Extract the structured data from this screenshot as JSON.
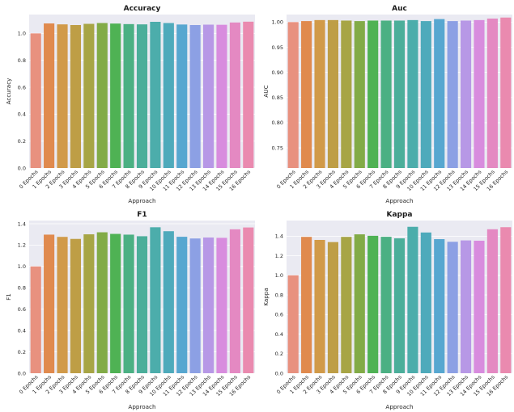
{
  "chart_data": [
    {
      "type": "bar",
      "title": "Accuracy",
      "xlabel": "Approach",
      "ylabel": "Accuracy",
      "categories": [
        "0 Epochs",
        "1 Epochs",
        "2 Epochs",
        "3 Epochs",
        "4 Epochs",
        "5 Epochs",
        "6 Epochs",
        "7 Epochs",
        "8 Epochs",
        "9 Epochs",
        "10 Epochs",
        "11 Epochs",
        "12 Epochs",
        "13 Epochs",
        "14 Epochs",
        "15 Epochs",
        "16 Epochs"
      ],
      "values": [
        1.0,
        1.074,
        1.067,
        1.062,
        1.071,
        1.077,
        1.073,
        1.069,
        1.067,
        1.086,
        1.077,
        1.066,
        1.062,
        1.065,
        1.064,
        1.081,
        1.087
      ],
      "ylim": [
        0,
        1.14
      ],
      "yticks": [
        "0.0",
        "0.2",
        "0.4",
        "0.6",
        "0.8",
        "1.0"
      ],
      "ytick_values": [
        0,
        0.2,
        0.4,
        0.6,
        0.8,
        1.0
      ],
      "grid": true
    },
    {
      "type": "bar",
      "title": "Auc",
      "xlabel": "Approach",
      "ylabel": "AUC",
      "categories": [
        "0 Epochs",
        "1 Epochs",
        "2 Epochs",
        "3 Epochs",
        "4 Epochs",
        "5 Epochs",
        "6 Epochs",
        "7 Epochs",
        "8 Epochs",
        "9 Epochs",
        "10 Epochs",
        "11 Epochs",
        "12 Epochs",
        "13 Epochs",
        "14 Epochs",
        "15 Epochs",
        "16 Epochs"
      ],
      "values": [
        1.0,
        1.002,
        1.004,
        1.004,
        1.003,
        1.002,
        1.003,
        1.003,
        1.003,
        1.004,
        1.002,
        1.006,
        1.002,
        1.003,
        1.004,
        1.007,
        1.009
      ],
      "ylim": [
        0.71,
        1.015
      ],
      "yticks": [
        "0.75",
        "0.80",
        "0.85",
        "0.90",
        "0.95",
        "1.00"
      ],
      "ytick_values": [
        0.75,
        0.8,
        0.85,
        0.9,
        0.95,
        1.0
      ],
      "grid": true
    },
    {
      "type": "bar",
      "title": "F1",
      "xlabel": "Approach",
      "ylabel": "F1",
      "categories": [
        "0 Epochs",
        "1 Epochs",
        "2 Epochs",
        "3 Epochs",
        "4 Epochs",
        "5 Epochs",
        "6 Epochs",
        "7 Epochs",
        "8 Epochs",
        "9 Epochs",
        "10 Epochs",
        "11 Epochs",
        "12 Epochs",
        "13 Epochs",
        "14 Epochs",
        "15 Epochs",
        "16 Epochs"
      ],
      "values": [
        1.0,
        1.298,
        1.277,
        1.258,
        1.301,
        1.32,
        1.305,
        1.298,
        1.283,
        1.367,
        1.33,
        1.278,
        1.262,
        1.271,
        1.268,
        1.348,
        1.365
      ],
      "ylim": [
        0,
        1.43
      ],
      "yticks": [
        "0.0",
        "0.2",
        "0.4",
        "0.6",
        "0.8",
        "1.0",
        "1.2",
        "1.4"
      ],
      "ytick_values": [
        0,
        0.2,
        0.4,
        0.6,
        0.8,
        1.0,
        1.2,
        1.4
      ],
      "grid": true
    },
    {
      "type": "bar",
      "title": "Kappa",
      "xlabel": "Approach",
      "ylabel": "Kappa",
      "categories": [
        "0 Epochs",
        "1 Epochs",
        "2 Epochs",
        "3 Epochs",
        "4 Epochs",
        "5 Epochs",
        "6 Epochs",
        "7 Epochs",
        "8 Epochs",
        "9 Epochs",
        "10 Epochs",
        "11 Epochs",
        "12 Epochs",
        "13 Epochs",
        "14 Epochs",
        "15 Epochs",
        "16 Epochs"
      ],
      "values": [
        1.0,
        1.393,
        1.362,
        1.34,
        1.393,
        1.419,
        1.404,
        1.394,
        1.378,
        1.496,
        1.438,
        1.37,
        1.343,
        1.357,
        1.354,
        1.471,
        1.492
      ],
      "ylim": [
        0,
        1.56
      ],
      "yticks": [
        "0.0",
        "0.2",
        "0.4",
        "0.6",
        "0.8",
        "1.0",
        "1.2",
        "1.4"
      ],
      "ytick_values": [
        0,
        0.2,
        0.4,
        0.6,
        0.8,
        1.0,
        1.2,
        1.4
      ],
      "grid": true
    }
  ],
  "palette": [
    "#e8917f",
    "#e08a4e",
    "#d19a49",
    "#be9e46",
    "#a7a545",
    "#82ab47",
    "#4fb254",
    "#4bb083",
    "#4bae9a",
    "#4cadab",
    "#4eaabb",
    "#57a7d0",
    "#8ca0e4",
    "#b798e6",
    "#d88cde",
    "#e489c2",
    "#ea8aaf"
  ]
}
